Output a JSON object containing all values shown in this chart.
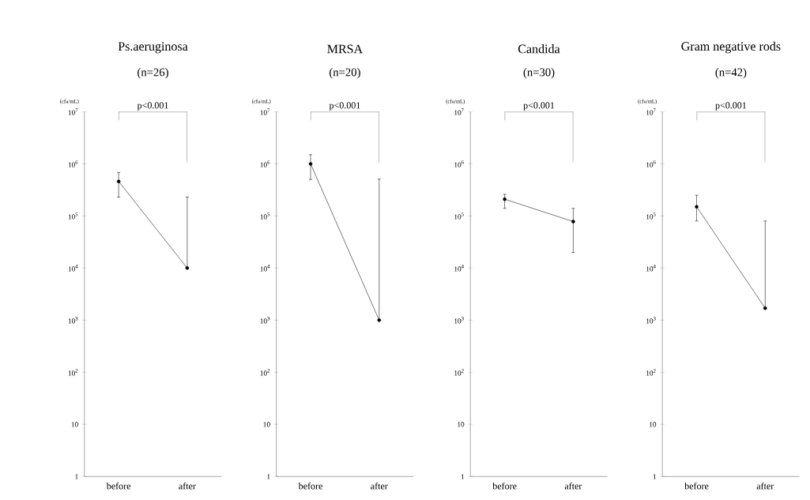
{
  "chart_data": [
    {
      "type": "line",
      "title": "Ps.aeruginosa",
      "subtitle": "(n=26)",
      "ylabel": "(cfu/mL)",
      "categories": [
        "before",
        "after"
      ],
      "log": "y",
      "marker": "circle",
      "line_style": "solid",
      "ylim": [
        1,
        10000000
      ],
      "yticks": [
        1,
        10,
        {
          "value": 100,
          "label": "10$^{2}$"
        },
        {
          "value": 1000,
          "label": "10$^{3}$"
        },
        {
          "value": 10000,
          "label": "10$^{4}$"
        },
        {
          "value": 100000,
          "label": "10$^{5}$"
        },
        {
          "value": 1000000,
          "label": "10$^{6}$"
        },
        {
          "value": 10000000,
          "label": "10$^{7}$"
        }
      ],
      "annotations": [
        "p<0.001"
      ],
      "series": [
        {
          "color": "#000000",
          "values": [
            460000,
            10000
          ],
          "errors": [
            [
              230000,
              680000
            ],
            [
              10000,
              230000
            ]
          ]
        }
      ]
    },
    {
      "type": "line",
      "title": "MRSA",
      "subtitle": "(n=20)",
      "ylabel": "(cfu/mL)",
      "categories": [
        "before",
        "after"
      ],
      "log": "y",
      "marker": "circle",
      "line_style": "solid",
      "ylim": [
        1,
        10000000
      ],
      "yticks": [
        1,
        10,
        {
          "value": 100,
          "label": "10$^{2}$"
        },
        {
          "value": 1000,
          "label": "10$^{3}$"
        },
        {
          "value": 10000,
          "label": "10$^{4}$"
        },
        {
          "value": 100000,
          "label": "10$^{5}$"
        },
        {
          "value": 1000000,
          "label": "10$^{6}$"
        },
        {
          "value": 10000000,
          "label": "10$^{7}$"
        }
      ],
      "annotations": [
        "p<0.001"
      ],
      "series": [
        {
          "color": "#000000",
          "values": [
            1000000,
            1000
          ],
          "errors": [
            [
              500000,
              1500000
            ],
            [
              1000,
              510000
            ]
          ]
        }
      ]
    },
    {
      "type": "line",
      "title": "Candida",
      "subtitle": "(n=30)",
      "ylabel": "(cfu/mL)",
      "categories": [
        "before",
        "after"
      ],
      "log": "y",
      "marker": "circle",
      "line_style": "solid",
      "ylim": [
        1,
        10000000
      ],
      "yticks": [
        1,
        10,
        {
          "value": 100,
          "label": "10$^{2}$"
        },
        {
          "value": 1000,
          "label": "10$^{3}$"
        },
        {
          "value": 10000,
          "label": "10$^{4}$"
        },
        {
          "value": 100000,
          "label": "10$^{5}$"
        },
        {
          "value": 1000000,
          "label": "10$^{6}$"
        },
        {
          "value": 10000000,
          "label": "10$^{7}$"
        }
      ],
      "annotations": [
        "p<0.001"
      ],
      "series": [
        {
          "color": "#000000",
          "values": [
            210000,
            78000
          ],
          "errors": [
            [
              140000,
              260000
            ],
            [
              20000,
              140000
            ]
          ]
        }
      ]
    },
    {
      "type": "line",
      "title": "Gram negative rods",
      "subtitle": "(n=42)",
      "ylabel": "(cfu/mL)",
      "categories": [
        "before",
        "after"
      ],
      "log": "y",
      "marker": "circle",
      "line_style": "solid",
      "ylim": [
        1,
        10000000
      ],
      "yticks": [
        1,
        10,
        {
          "value": 100,
          "label": "10$^{2}$"
        },
        {
          "value": 1000,
          "label": "10$^{3}$"
        },
        {
          "value": 10000,
          "label": "10$^{4}$"
        },
        {
          "value": 100000,
          "label": "10$^{5}$"
        },
        {
          "value": 1000000,
          "label": "10$^{6}$"
        },
        {
          "value": 10000000,
          "label": "10$^{7}$"
        }
      ],
      "annotations": [
        "p<0.001"
      ],
      "series": [
        {
          "color": "#000000",
          "values": [
            150000,
            1700
          ],
          "errors": [
            [
              80000,
              250000
            ],
            [
              1700,
              80000
            ]
          ]
        }
      ]
    }
  ]
}
